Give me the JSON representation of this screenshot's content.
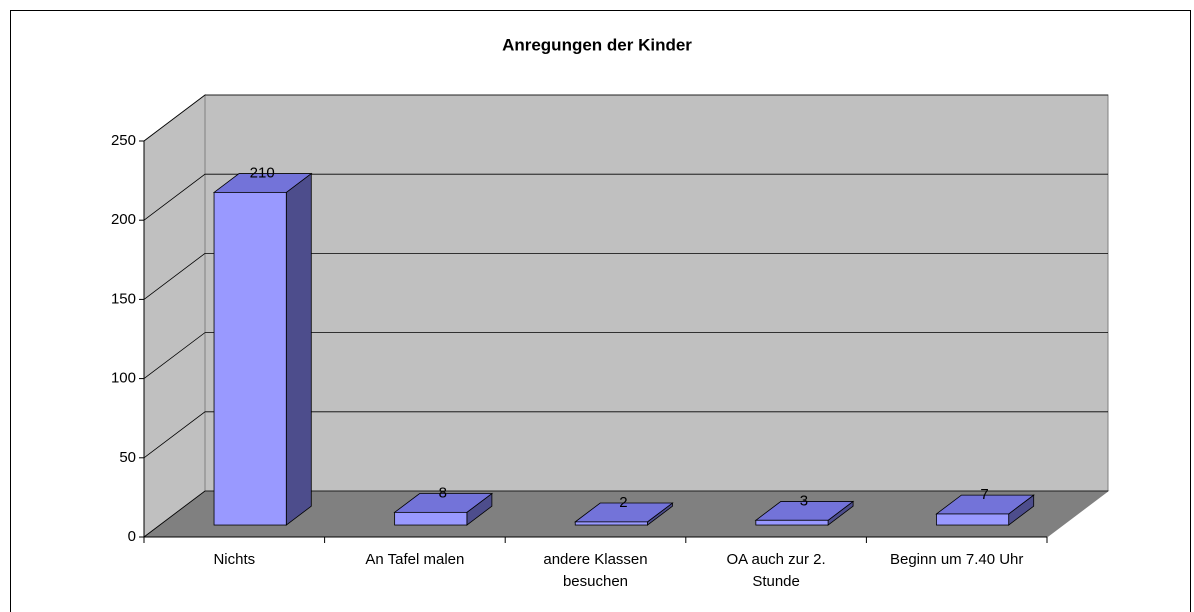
{
  "chart_data": {
    "type": "bar3d",
    "title": "Anregungen der Kinder",
    "categories": [
      "Nichts",
      "An Tafel malen",
      "andere Klassen besuchen",
      "OA auch zur 2. Stunde",
      "Beginn um 7.40 Uhr"
    ],
    "values": [
      210,
      8,
      2,
      3,
      7
    ],
    "color": "#9999ff",
    "ylim": [
      0,
      250
    ],
    "yticks": [
      0,
      50,
      100,
      150,
      200,
      250
    ],
    "grid": true
  }
}
